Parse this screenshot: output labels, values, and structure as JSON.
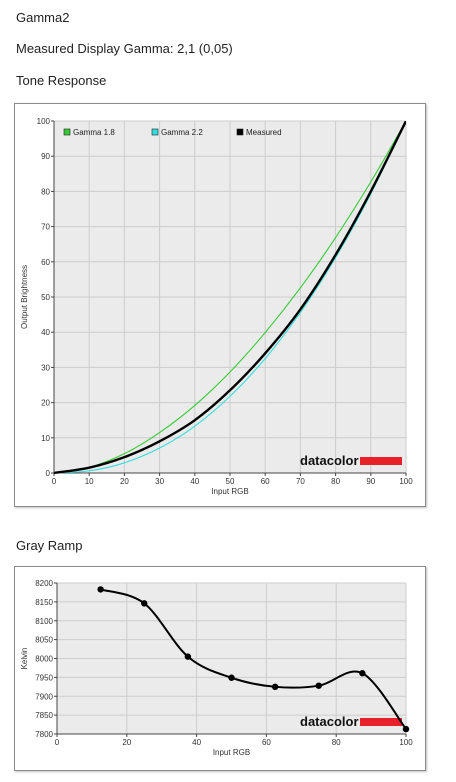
{
  "page": {
    "title": "Gamma2",
    "measured_line": "Measured Display Gamma: 2,1 (0,05)",
    "section_tone": "Tone Response",
    "section_gray": "Gray Ramp"
  },
  "logo_text": "datacolor",
  "colors": {
    "gamma18": "#33cc33",
    "gamma22": "#33dddd",
    "measured": "#000000",
    "logo_bar": "#e8202a",
    "grid": "#cccccc",
    "plot_bg": "#ebebeb"
  },
  "chart_data": [
    {
      "type": "line",
      "title": "Tone Response",
      "xlabel": "Input RGB",
      "ylabel": "Output Brightness",
      "xlim": [
        0,
        100
      ],
      "ylim": [
        0,
        100
      ],
      "xticks": [
        0,
        10,
        20,
        30,
        40,
        50,
        60,
        70,
        80,
        90,
        100
      ],
      "yticks": [
        0,
        10,
        20,
        30,
        40,
        50,
        60,
        70,
        80,
        90,
        100
      ],
      "grid": true,
      "legend": "top-left",
      "series": [
        {
          "name": "Gamma 1.8",
          "color": "#33cc33",
          "x": [
            0,
            10,
            20,
            30,
            40,
            50,
            60,
            70,
            80,
            90,
            100
          ],
          "y": [
            0,
            1.6,
            5.5,
            11.5,
            19.2,
            28.7,
            39.9,
            52.6,
            66.9,
            82.7,
            100
          ]
        },
        {
          "name": "Gamma 2.2",
          "color": "#33dddd",
          "x": [
            0,
            10,
            20,
            30,
            40,
            50,
            60,
            70,
            80,
            90,
            100
          ],
          "y": [
            0,
            0.6,
            2.9,
            7.1,
            13.3,
            21.8,
            32.5,
            45.6,
            61.2,
            79.3,
            100
          ]
        },
        {
          "name": "Measured",
          "color": "#000000",
          "x": [
            0,
            10,
            20,
            30,
            40,
            50,
            60,
            70,
            80,
            90,
            100
          ],
          "y": [
            0,
            1.5,
            4.5,
            9,
            15,
            23.5,
            34,
            46.5,
            62,
            80,
            100
          ]
        }
      ]
    },
    {
      "type": "line",
      "title": "Gray Ramp",
      "xlabel": "Input RGB",
      "ylabel": "Kelvin",
      "xlim": [
        0,
        100
      ],
      "ylim": [
        7800,
        8200
      ],
      "xticks": [
        0,
        20,
        40,
        60,
        80,
        100
      ],
      "yticks": [
        7800,
        7850,
        7900,
        7950,
        8000,
        8050,
        8100,
        8150,
        8200
      ],
      "grid": true,
      "series": [
        {
          "name": "",
          "color": "#000000",
          "x": [
            12.5,
            25,
            37.5,
            50,
            62.5,
            75,
            87.5,
            100
          ],
          "y": [
            8183,
            8146,
            8005,
            7949,
            7925,
            7928,
            7961,
            7813
          ]
        }
      ]
    }
  ]
}
